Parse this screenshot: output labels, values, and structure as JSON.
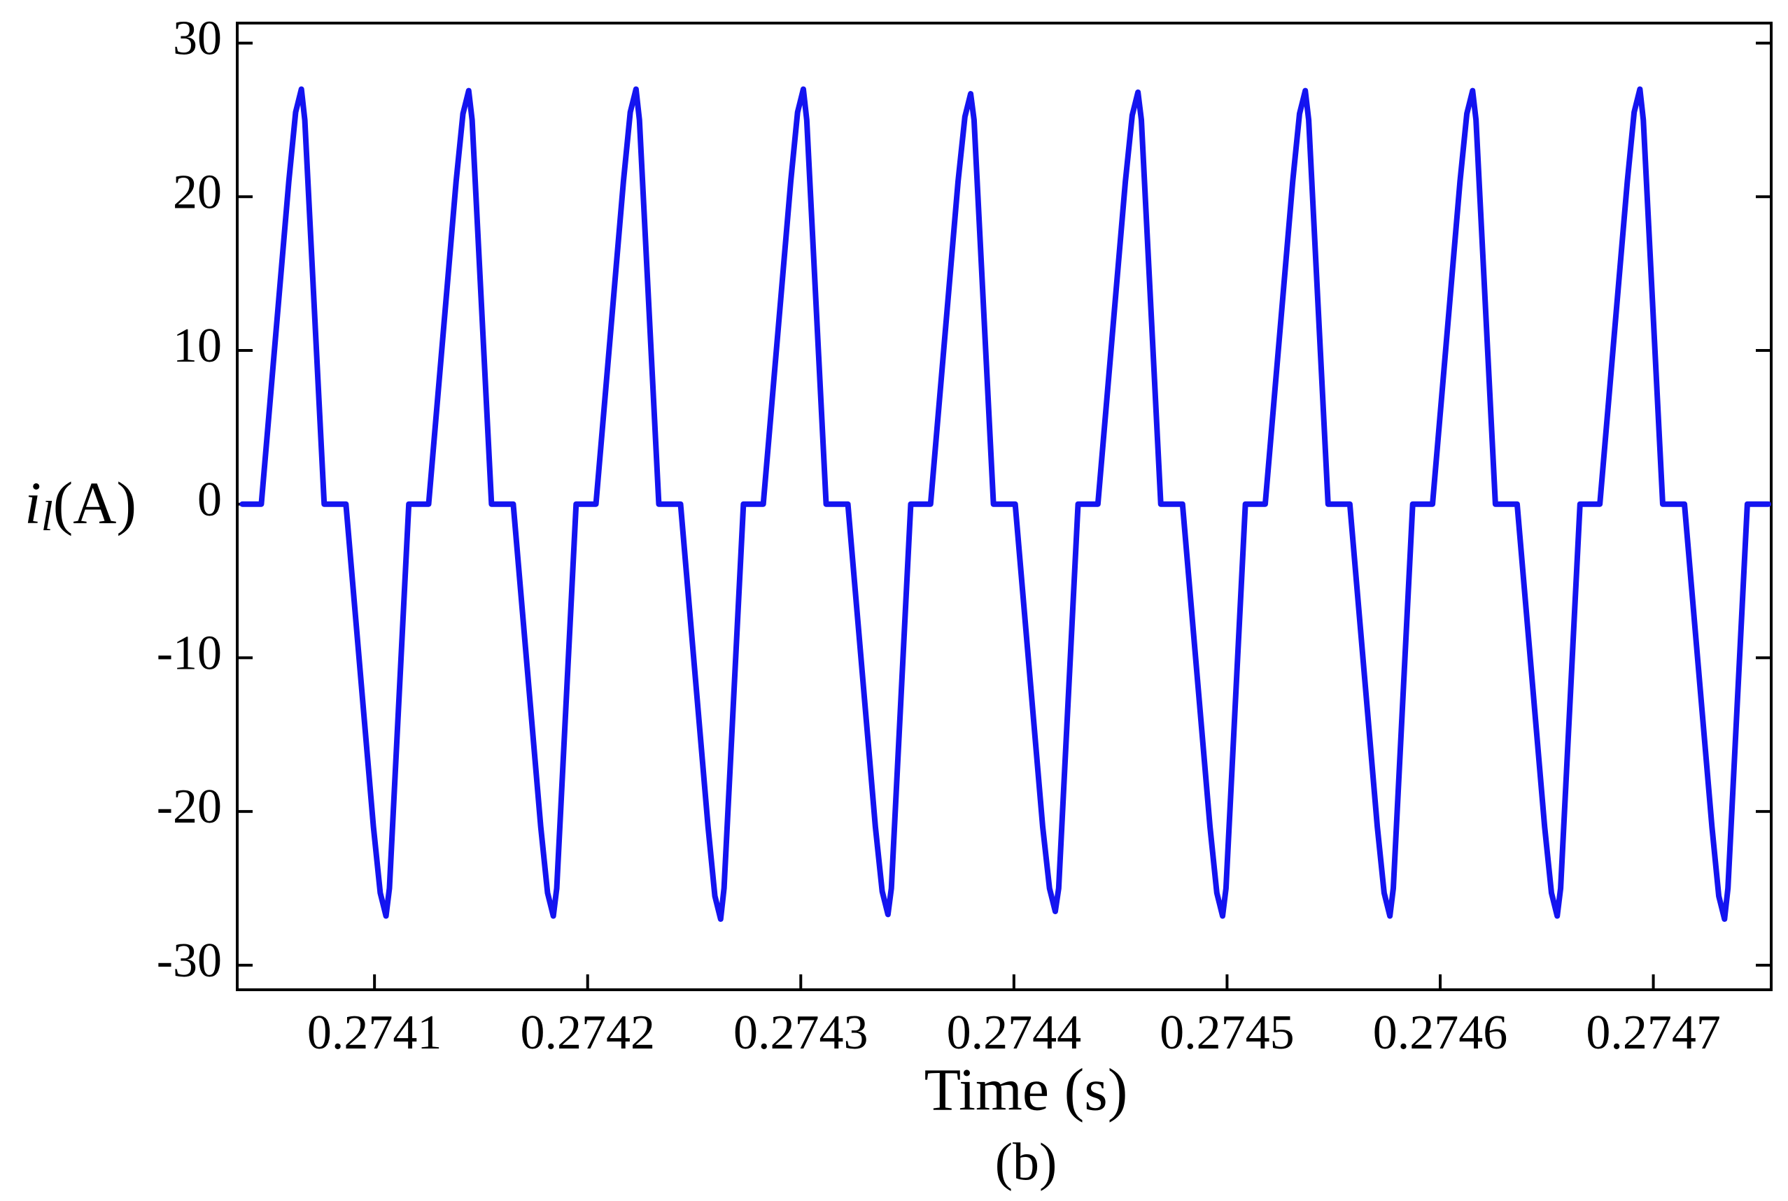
{
  "chart_data": {
    "type": "line",
    "y_label": {
      "symbol": "i",
      "subscript": "l",
      "unit": "(A)"
    },
    "x_label": "Time (s)",
    "caption": "(b)",
    "color": "#1414f0",
    "xlim": [
      0.2740356,
      0.2747553
    ],
    "ylim": [
      -31.6,
      31.3
    ],
    "xticks": [
      0.2741,
      0.2742,
      0.2743,
      0.2744,
      0.2745,
      0.2746,
      0.2747
    ],
    "yticks": [
      -30,
      -20,
      -10,
      0,
      10,
      20,
      30
    ],
    "x": [
      0.274038,
      0.2740469,
      0.2740512,
      0.2740555,
      0.2740598,
      0.274063,
      0.2740657,
      0.2740673,
      0.2740764,
      0.2740866,
      0.2740909,
      0.2740952,
      0.2740995,
      0.2741027,
      0.2741054,
      0.274107,
      0.2741161,
      0.2741254,
      0.2741297,
      0.274134,
      0.2741383,
      0.2741415,
      0.2741442,
      0.2741458,
      0.2741549,
      0.2741651,
      0.2741694,
      0.2741737,
      0.274178,
      0.2741812,
      0.2741839,
      0.2741855,
      0.2741946,
      0.2742039,
      0.2742082,
      0.2742125,
      0.2742168,
      0.27422,
      0.2742227,
      0.2742243,
      0.2742334,
      0.2742436,
      0.2742479,
      0.2742522,
      0.2742565,
      0.2742597,
      0.2742624,
      0.274264,
      0.2742731,
      0.2742824,
      0.2742867,
      0.274291,
      0.2742953,
      0.2742985,
      0.2743012,
      0.2743028,
      0.2743119,
      0.2743221,
      0.2743264,
      0.2743307,
      0.274335,
      0.2743382,
      0.2743409,
      0.2743425,
      0.2743516,
      0.2743609,
      0.2743652,
      0.2743695,
      0.2743738,
      0.274377,
      0.2743797,
      0.2743813,
      0.2743904,
      0.2744006,
      0.2744049,
      0.2744092,
      0.2744135,
      0.2744167,
      0.2744194,
      0.274421,
      0.2744301,
      0.2744394,
      0.2744437,
      0.274448,
      0.2744523,
      0.2744555,
      0.2744582,
      0.2744598,
      0.2744689,
      0.2744791,
      0.2744834,
      0.2744877,
      0.274492,
      0.2744952,
      0.2744979,
      0.2744995,
      0.2745086,
      0.2745179,
      0.2745222,
      0.2745265,
      0.2745308,
      0.274534,
      0.2745367,
      0.2745383,
      0.2745474,
      0.2745576,
      0.2745619,
      0.2745662,
      0.2745705,
      0.2745737,
      0.2745764,
      0.274578,
      0.2745871,
      0.2745964,
      0.2746007,
      0.274605,
      0.2746093,
      0.2746125,
      0.2746152,
      0.2746168,
      0.2746259,
      0.2746361,
      0.2746404,
      0.2746447,
      0.274649,
      0.2746522,
      0.2746549,
      0.2746565,
      0.2746656,
      0.2746749,
      0.2746792,
      0.2746835,
      0.2746878,
      0.274691,
      0.2746937,
      0.2746953,
      0.2747044,
      0.2747146,
      0.2747189,
      0.2747232,
      0.2747275,
      0.2747307,
      0.2747334,
      0.274735,
      0.2747441,
      0.274754
    ],
    "values": [
      0,
      0,
      7,
      14,
      21,
      25.5,
      27,
      25,
      0,
      0,
      -7,
      -14,
      -21,
      -25.3,
      -26.8,
      -25,
      0,
      0,
      7,
      14,
      21,
      25.4,
      26.9,
      25,
      0,
      0,
      -7,
      -14,
      -21,
      -25.3,
      -26.8,
      -25,
      0,
      0,
      7,
      14,
      21,
      25.5,
      27,
      25,
      0,
      0,
      -7,
      -14,
      -21,
      -25.5,
      -27,
      -25,
      0,
      0,
      7,
      14,
      21,
      25.5,
      27,
      25,
      0,
      0,
      -7,
      -14,
      -21,
      -25.2,
      -26.7,
      -25,
      0,
      0,
      7,
      14,
      21,
      25.2,
      26.7,
      25,
      0,
      0,
      -7,
      -14,
      -21,
      -25,
      -26.5,
      -25,
      0,
      0,
      7,
      14,
      21,
      25.3,
      26.8,
      25,
      0,
      0,
      -7,
      -14,
      -21,
      -25.3,
      -26.8,
      -25,
      0,
      0,
      7,
      14,
      21,
      25.4,
      26.9,
      25,
      0,
      0,
      -7,
      -14,
      -21,
      -25.3,
      -26.8,
      -25,
      0,
      0,
      7,
      14,
      21,
      25.4,
      26.9,
      25,
      0,
      0,
      -7,
      -14,
      -21,
      -25.3,
      -26.8,
      -25,
      0,
      0,
      7,
      14,
      21,
      25.5,
      27,
      25,
      0,
      0,
      -7,
      -14,
      -21,
      -25.5,
      -27,
      -25,
      0,
      0
    ]
  }
}
